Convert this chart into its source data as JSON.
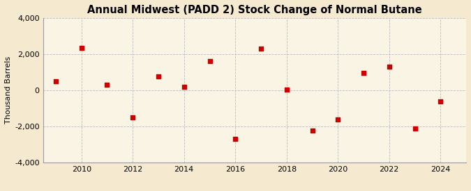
{
  "title": "Annual Midwest (PADD 2) Stock Change of Normal Butane",
  "ylabel": "Thousand Barrels",
  "background_color": "#f5e9d0",
  "plot_background_color": "#faf4e4",
  "years": [
    2009,
    2010,
    2011,
    2012,
    2013,
    2014,
    2015,
    2016,
    2017,
    2018,
    2019,
    2020,
    2021,
    2022,
    2023,
    2024
  ],
  "values": [
    500,
    2350,
    300,
    -1500,
    750,
    200,
    1600,
    -2700,
    2300,
    30,
    -2250,
    -1600,
    950,
    1300,
    -2100,
    -600
  ],
  "marker_color": "#cc0000",
  "marker_size": 5,
  "ylim": [
    -4000,
    4000
  ],
  "yticks": [
    -4000,
    -2000,
    0,
    2000,
    4000
  ],
  "xticks": [
    2010,
    2012,
    2014,
    2016,
    2018,
    2020,
    2022,
    2024
  ],
  "xlim": [
    2008.5,
    2025.0
  ],
  "grid_color": "#bbbbbb",
  "grid_style": "--",
  "title_fontsize": 10.5,
  "label_fontsize": 8,
  "tick_fontsize": 8,
  "source_fontsize": 7.5
}
